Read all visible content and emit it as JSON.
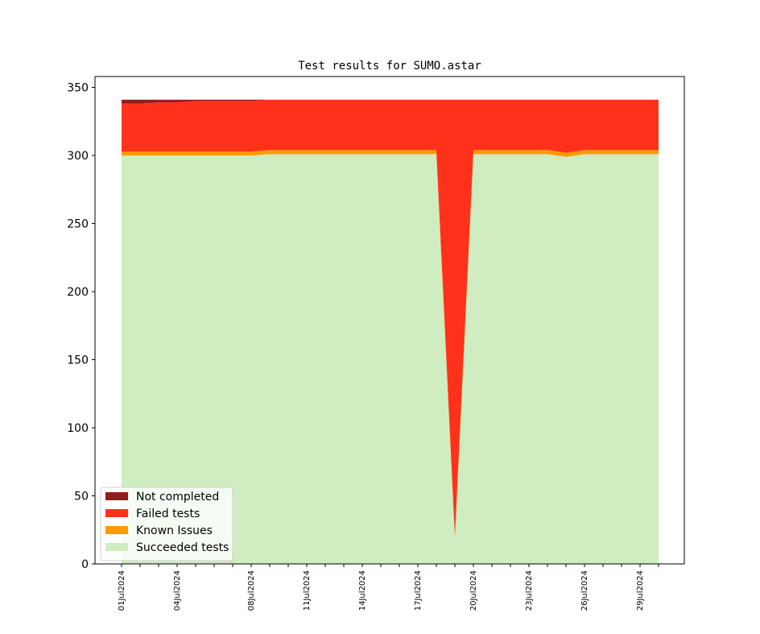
{
  "chart_data": {
    "type": "area",
    "title": "Test results for SUMO.astar",
    "xlabel": "",
    "ylabel": "",
    "ylim": [
      0,
      358
    ],
    "yticks": [
      0,
      50,
      100,
      150,
      200,
      250,
      300,
      350
    ],
    "x": [
      "01Jul2024",
      "02Jul2024",
      "03Jul2024",
      "04Jul2024",
      "05Jul2024",
      "06Jul2024",
      "07Jul2024",
      "08Jul2024",
      "09Jul2024",
      "10Jul2024",
      "11Jul2024",
      "12Jul2024",
      "13Jul2024",
      "14Jul2024",
      "15Jul2024",
      "16Jul2024",
      "17Jul2024",
      "18Jul2024",
      "19Jul2024",
      "20Jul2024",
      "21Jul2024",
      "22Jul2024",
      "23Jul2024",
      "24Jul2024",
      "25Jul2024",
      "26Jul2024",
      "27Jul2024",
      "28Jul2024",
      "29Jul2024",
      "30Jul2024"
    ],
    "xtick_labels": [
      "01Jul2024",
      "",
      "",
      "04Jul2024",
      "",
      "",
      "",
      "08Jul2024",
      "",
      "",
      "11Jul2024",
      "",
      "",
      "14Jul2024",
      "",
      "",
      "17Jul2024",
      "",
      "",
      "20Jul2024",
      "",
      "",
      "23Jul2024",
      "",
      "",
      "26Jul2024",
      "",
      "",
      "29Jul2024",
      ""
    ],
    "stack_order": [
      "Succeeded tests",
      "Known Issues",
      "Failed tests",
      "Not completed"
    ],
    "series": [
      {
        "name": "Succeeded tests",
        "color": "#cfedc0",
        "values": [
          300,
          300,
          300,
          300,
          300,
          300,
          300,
          300,
          301,
          301,
          301,
          301,
          301,
          301,
          301,
          301,
          301,
          301,
          18,
          301,
          301,
          301,
          301,
          301,
          299,
          301,
          301,
          301,
          301,
          301
        ]
      },
      {
        "name": "Known Issues",
        "color": "#ff9a00",
        "values": [
          3,
          3,
          3,
          3,
          3,
          3,
          3,
          3,
          3,
          3,
          3,
          3,
          3,
          3,
          3,
          3,
          3,
          3,
          3,
          3,
          3,
          3,
          3,
          3,
          3,
          3,
          3,
          3,
          3,
          3
        ]
      },
      {
        "name": "Failed tests",
        "color": "#ff311a",
        "values": [
          35,
          35,
          36,
          36,
          37,
          37,
          37,
          37,
          37,
          37,
          37,
          37,
          37,
          37,
          37,
          37,
          37,
          37,
          320,
          37,
          37,
          37,
          37,
          37,
          39,
          37,
          37,
          37,
          37,
          37
        ]
      },
      {
        "name": "Not completed",
        "color": "#921c1c",
        "values": [
          3,
          3,
          2,
          2,
          1,
          1,
          1,
          1,
          0,
          0,
          0,
          0,
          0,
          0,
          0,
          0,
          0,
          0,
          0,
          0,
          0,
          0,
          0,
          0,
          0,
          0,
          0,
          0,
          0,
          0
        ]
      }
    ],
    "legend": {
      "placement": "lower-left",
      "entries": [
        "Not completed",
        "Failed tests",
        "Known Issues",
        "Succeeded tests"
      ]
    },
    "grid": false
  }
}
